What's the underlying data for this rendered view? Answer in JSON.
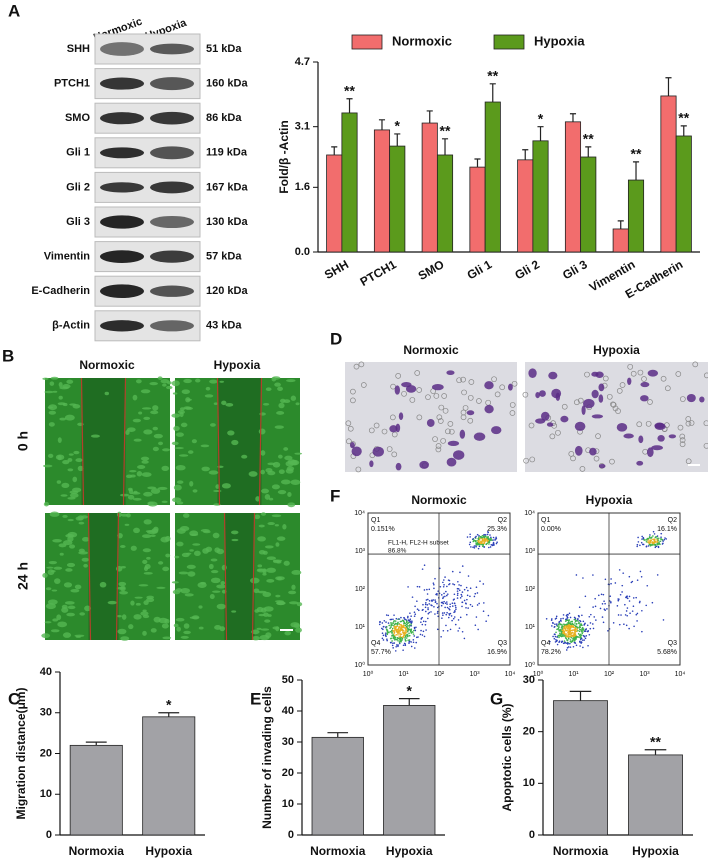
{
  "panel_labels": [
    "A",
    "B",
    "C",
    "D",
    "E",
    "F",
    "G"
  ],
  "blot": {
    "lanes": [
      "Normoxic",
      "Hypoxia"
    ],
    "rows": [
      {
        "protein": "SHH",
        "size": "51 kDa"
      },
      {
        "protein": "PTCH1",
        "size": "160 kDa"
      },
      {
        "protein": "SMO",
        "size": "86 kDa"
      },
      {
        "protein": "Gli 1",
        "size": "119 kDa"
      },
      {
        "protein": "Gli 2",
        "size": "167 kDa"
      },
      {
        "protein": "Gli 3",
        "size": "130 kDa"
      },
      {
        "protein": "Vimentin",
        "size": "57 kDa"
      },
      {
        "protein": "E-Cadherin",
        "size": "120 kDa"
      },
      {
        "protein": "β-Actin",
        "size": "43 kDa"
      }
    ]
  },
  "wound": {
    "columns": [
      "Normoxic",
      "Hypoxia"
    ],
    "rows": [
      "0 h",
      "24 h"
    ]
  },
  "transwell": {
    "columns": [
      "Normoxic",
      "Hypoxia"
    ]
  },
  "flow": {
    "ticks": [
      "10⁰",
      "10¹",
      "10²",
      "10³",
      "10⁴"
    ],
    "gate_label": "FL1-H, FL2-H subset",
    "gate_value": "86.8%",
    "plots": [
      {
        "title": "Normoxic",
        "quadrants": [
          {
            "name": "Q1",
            "value": "0.151%"
          },
          {
            "name": "Q2",
            "value": "25.3%"
          },
          {
            "name": "Q3",
            "value": "16.9%"
          },
          {
            "name": "Q4",
            "value": "57.7%"
          }
        ]
      },
      {
        "title": "Hypoxia",
        "quadrants": [
          {
            "name": "Q1",
            "value": "0.00%"
          },
          {
            "name": "Q2",
            "value": "16.1%"
          },
          {
            "name": "Q3",
            "value": "5.68%"
          },
          {
            "name": "Q4",
            "value": "78.2%"
          }
        ]
      }
    ]
  },
  "chart_data": [
    {
      "type": "bar",
      "ylabel": "Fold/β -Actin",
      "categories": [
        "SHH",
        "PTCH1",
        "SMO",
        "Gli 1",
        "Gli 2",
        "Gli 3",
        "Vimentin",
        "E-Cadherin"
      ],
      "series": [
        {
          "name": "Normoxic",
          "color": "#f26d6d",
          "values": [
            2.4,
            3.02,
            3.19,
            2.1,
            2.28,
            3.22,
            0.57,
            3.86
          ],
          "errors": [
            0.2,
            0.25,
            0.3,
            0.2,
            0.25,
            0.2,
            0.2,
            0.45
          ]
        },
        {
          "name": "Hypoxia",
          "color": "#5b9a1c",
          "values": [
            3.44,
            2.62,
            2.4,
            3.71,
            2.75,
            2.35,
            1.78,
            2.87
          ],
          "errors": [
            0.35,
            0.3,
            0.4,
            0.45,
            0.35,
            0.25,
            0.45,
            0.25
          ]
        }
      ],
      "annotations": [
        "**",
        "*",
        "**",
        "**",
        "*",
        "**",
        "**",
        "**"
      ],
      "ylim": [
        0,
        4.7
      ],
      "yticks": [
        {
          "value": 0,
          "label": "0.0"
        },
        1.6,
        3.1,
        4.7
      ],
      "legend": "top"
    },
    {
      "type": "bar",
      "ylabel": "Migration distance(μm)",
      "categories": [
        "Normoxia",
        "Hypoxia"
      ],
      "values": [
        22,
        29
      ],
      "errors": [
        0.8,
        1
      ],
      "color": "#a2a2a6",
      "annotations": [
        null,
        "*"
      ],
      "ylim": [
        0,
        40
      ],
      "yticks": [
        0,
        10,
        20,
        30,
        40
      ]
    },
    {
      "type": "bar",
      "ylabel": "Number of invading cells",
      "categories": [
        "Normoxia",
        "Hypoxia"
      ],
      "values": [
        31.5,
        41.8
      ],
      "errors": [
        1.5,
        2.2
      ],
      "color": "#a2a2a6",
      "annotations": [
        null,
        "*"
      ],
      "ylim": [
        0,
        50
      ],
      "yticks": [
        0,
        10,
        20,
        30,
        40,
        50
      ]
    },
    {
      "type": "bar",
      "ylabel": "Apoptotic cells (%)",
      "categories": [
        "Normoxia",
        "Hypoxia"
      ],
      "values": [
        26,
        15.5
      ],
      "errors": [
        1.8,
        1
      ],
      "color": "#a2a2a6",
      "annotations": [
        null,
        "**"
      ],
      "ylim": [
        0,
        30
      ],
      "yticks": [
        0,
        10,
        20,
        30
      ]
    }
  ]
}
